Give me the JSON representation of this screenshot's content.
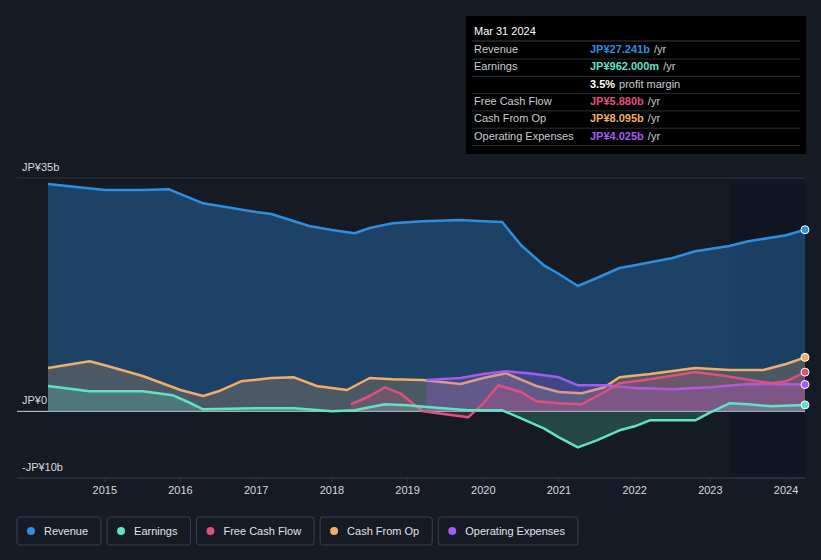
{
  "chart_data": {
    "type": "area",
    "xlim": [
      2013.84,
      2024.25
    ],
    "xticks": [
      2015,
      2016,
      2017,
      2018,
      2019,
      2020,
      2021,
      2022,
      2023,
      2024
    ],
    "ylim": [
      -10,
      35
    ],
    "yticks": [
      {
        "value": 35,
        "label": "JP¥35b"
      },
      {
        "value": 0,
        "label": "JP¥0"
      },
      {
        "value": -10,
        "label": "-JP¥10b"
      }
    ],
    "grid": true,
    "legend": "bottom",
    "series": [
      {
        "name": "Revenue",
        "color": "#2d8fe0",
        "x": [
          2014.25,
          2015,
          2015.5,
          2015.85,
          2016.3,
          2017,
          2017.2,
          2017.7,
          2018,
          2018.3,
          2018.5,
          2018.8,
          2019.2,
          2019.7,
          2020,
          2020.25,
          2020.5,
          2020.8,
          2021,
          2021.25,
          2021.5,
          2021.8,
          2022,
          2022.5,
          2022.8,
          2023.25,
          2023.5,
          2024,
          2024.25
        ],
        "values": [
          34.1,
          33.2,
          33.2,
          33.3,
          31.2,
          29.9,
          29.6,
          27.8,
          27.2,
          26.7,
          27.5,
          28.2,
          28.5,
          28.7,
          28.5,
          28.4,
          24.9,
          21.9,
          20.6,
          18.8,
          20.0,
          21.5,
          21.9,
          23.0,
          24.0,
          24.8,
          25.5,
          26.4,
          27.241
        ]
      },
      {
        "name": "Earnings",
        "color": "#5fe3c4",
        "x": [
          2014.25,
          2014.8,
          2015.5,
          2015.9,
          2016.1,
          2016.3,
          2017,
          2017.5,
          2018,
          2018.3,
          2018.7,
          2019,
          2019.3,
          2019.8,
          2020.25,
          2020.5,
          2020.8,
          2021,
          2021.25,
          2021.5,
          2021.8,
          2022,
          2022.2,
          2022.8,
          2023,
          2023.25,
          2023.5,
          2023.8,
          2024.25
        ],
        "values": [
          3.8,
          3.0,
          3.0,
          2.4,
          1.4,
          0.3,
          0.45,
          0.45,
          0,
          0.15,
          1.05,
          0.9,
          0.6,
          0.15,
          0.15,
          -1.05,
          -2.55,
          -3.9,
          -5.4,
          -4.35,
          -2.85,
          -2.25,
          -1.35,
          -1.35,
          -0.15,
          1.2,
          1.05,
          0.75,
          0.962
        ]
      },
      {
        "name": "Free Cash Flow",
        "color": "#e0507f",
        "x": [
          2018.25,
          2018.5,
          2018.7,
          2018.9,
          2019.2,
          2019.5,
          2019.8,
          2020,
          2020.2,
          2020.5,
          2020.7,
          2021,
          2021.3,
          2021.6,
          2021.8,
          2022.2,
          2022.8,
          2023.2,
          2023.8,
          2024,
          2024.25
        ],
        "values": [
          1.05,
          2.3,
          3.6,
          2.7,
          0,
          -0.45,
          -0.9,
          1.2,
          3.9,
          2.9,
          1.5,
          1.2,
          1.05,
          2.9,
          4.2,
          4.8,
          5.9,
          5.3,
          4.2,
          4.5,
          5.88
        ]
      },
      {
        "name": "Cash From Op",
        "color": "#f0ae6a",
        "x": [
          2014.25,
          2014.8,
          2015,
          2015.5,
          2016,
          2016.3,
          2016.5,
          2016.8,
          2017.2,
          2017.5,
          2017.8,
          2018.2,
          2018.5,
          2018.8,
          2019.2,
          2019.7,
          2020,
          2020.3,
          2020.7,
          2021,
          2021.3,
          2021.6,
          2021.8,
          2022.2,
          2022.8,
          2023.25,
          2023.7,
          2024,
          2024.25
        ],
        "values": [
          6.5,
          7.5,
          6.9,
          5.3,
          3.2,
          2.3,
          3.0,
          4.5,
          5.0,
          5.1,
          3.8,
          3.2,
          5.0,
          4.8,
          4.7,
          4.1,
          5.0,
          5.7,
          3.8,
          2.9,
          2.7,
          3.6,
          5.1,
          5.6,
          6.5,
          6.2,
          6.2,
          7.1,
          8.095
        ]
      },
      {
        "name": "Operating Expenses",
        "color": "#a45cf0",
        "x": [
          2019.25,
          2019.7,
          2020,
          2020.3,
          2020.6,
          2021,
          2021.25,
          2021.6,
          2022,
          2022.5,
          2023,
          2023.5,
          2024.25
        ],
        "values": [
          4.7,
          5.0,
          5.6,
          6.0,
          5.7,
          5.1,
          3.9,
          3.9,
          3.5,
          3.3,
          3.6,
          4.1,
          4.025
        ]
      }
    ],
    "tooltip": {
      "title": "Mar 31 2024",
      "rows": [
        {
          "label": "Revenue",
          "value": "JP¥27.241b",
          "suffix": "/yr"
        },
        {
          "label": "Earnings",
          "value": "JP¥962.000m",
          "suffix": "/yr"
        },
        {
          "value": "3.5%",
          "suffix": "profit margin"
        },
        {
          "label": "Free Cash Flow",
          "value": "JP¥5.880b",
          "suffix": "/yr"
        },
        {
          "label": "Cash From Op",
          "value": "JP¥8.095b",
          "suffix": "/yr"
        },
        {
          "label": "Operating Expenses",
          "value": "JP¥4.025b",
          "suffix": "/yr"
        }
      ]
    }
  }
}
